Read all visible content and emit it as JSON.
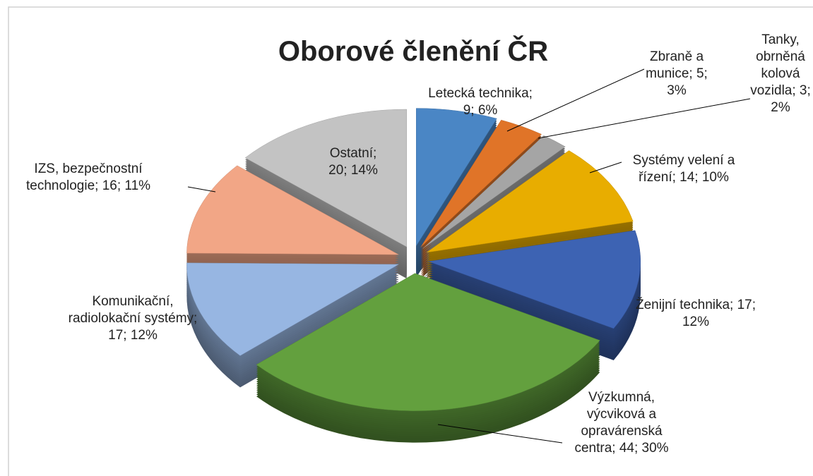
{
  "chart_data": {
    "type": "pie3d",
    "title": "Oborové členění ČR",
    "values": [
      9,
      5,
      3,
      14,
      17,
      44,
      17,
      16,
      20
    ],
    "value_labels": [
      "Letecká technika; 9; 6%",
      "Zbraně a munice; 5; 3%",
      "Tanky, obrněná kolová vozidla; 3; 2%",
      "Systémy velení a řízení; 14; 10%",
      "Ženijní technika; 17; 12%",
      "Výzkumná, výcviková a opravárenská centra; 44; 30%",
      "Komunikační, radiolokační systémy; 17; 12%",
      "IZS, bezpečnostní technologie; 16; 11%",
      "Ostatní; 20; 14%"
    ],
    "colors": [
      "#4a86c5",
      "#e07428",
      "#a5a5a5",
      "#e8ad00",
      "#3d63b3",
      "#63a03e",
      "#97b6e2",
      "#f2a686",
      "#c3c3c3"
    ]
  }
}
